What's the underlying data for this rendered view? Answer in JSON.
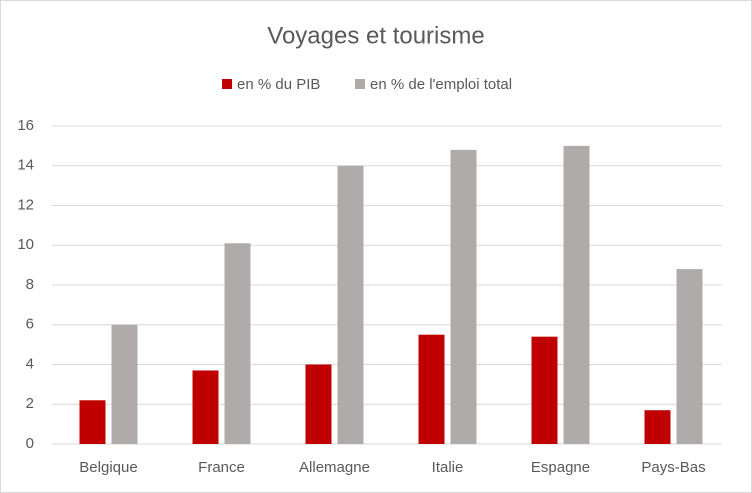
{
  "chart_data": {
    "type": "bar",
    "title": "Voyages et tourisme",
    "categories": [
      "Belgique",
      "France",
      "Allemagne",
      "Italie",
      "Espagne",
      "Pays-Bas"
    ],
    "series": [
      {
        "name": "en % du PIB",
        "color": "#c00000",
        "values": [
          2.2,
          3.7,
          4.0,
          5.5,
          5.4,
          1.7
        ]
      },
      {
        "name": "en % de l'emploi total",
        "color": "#afabab",
        "values": [
          6.0,
          10.1,
          14.0,
          14.8,
          15.0,
          8.8
        ]
      }
    ],
    "ylim": [
      0,
      16
    ],
    "yticks": [
      0,
      2,
      4,
      6,
      8,
      10,
      12,
      14,
      16
    ],
    "grid": true,
    "legend": "top"
  }
}
